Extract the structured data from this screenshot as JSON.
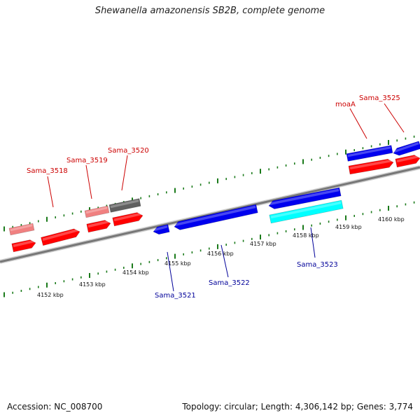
{
  "title": "Shewanella amazonensis SB2B, complete genome",
  "accession": "Accession: NC_008700",
  "summary": "Topology: circular; Length: 4,306,142 bp; Genes: 3,774",
  "colors": {
    "forward_gene": "#ff0000",
    "forward_pseudo": "#f08080",
    "forward_other": "#606060",
    "reverse_gene": "#0000ee",
    "reverse_other": "#00ffff",
    "tick": "#1a7a1a",
    "backbone": "#777777",
    "forward_label": "#cc0000",
    "reverse_label": "#000099"
  },
  "kbp_ticks": [
    "4152 kbp",
    "4153 kbp",
    "4154 kbp",
    "4155 kbp",
    "4156 kbp",
    "4157 kbp",
    "4158 kbp",
    "4159 kbp",
    "4160 kbp"
  ],
  "gene_labels": {
    "forward": [
      "Sama_3518",
      "Sama_3519",
      "Sama_3520",
      "moaA",
      "Sama_3525"
    ],
    "reverse": [
      "Sama_3521",
      "Sama_3522",
      "Sama_3523"
    ]
  }
}
